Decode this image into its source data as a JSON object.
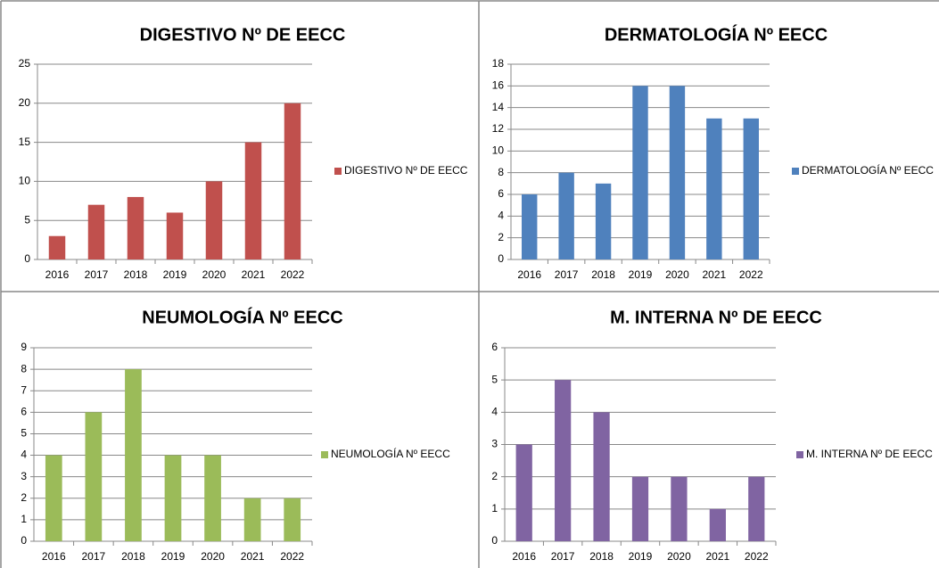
{
  "chart_data": [
    {
      "type": "bar",
      "title": "DIGESTIVO Nº DE EECC",
      "categories": [
        "2016",
        "2017",
        "2018",
        "2019",
        "2020",
        "2021",
        "2022"
      ],
      "series": [
        {
          "name": "DIGESTIVO Nº DE EECC",
          "color": "#c0504d",
          "values": [
            3,
            7,
            8,
            6,
            10,
            15,
            20
          ]
        }
      ],
      "ylim": [
        0,
        25
      ],
      "yticks": [
        0,
        5,
        10,
        15,
        20,
        25
      ],
      "grid": true,
      "legend": "right"
    },
    {
      "type": "bar",
      "title": "DERMATOLOGÍA Nº EECC",
      "categories": [
        "2016",
        "2017",
        "2018",
        "2019",
        "2020",
        "2021",
        "2022"
      ],
      "series": [
        {
          "name": "DERMATOLOGÍA Nº EECC",
          "color": "#4f81bd",
          "values": [
            6,
            8,
            7,
            16,
            16,
            13,
            13
          ]
        }
      ],
      "ylim": [
        0,
        18
      ],
      "yticks": [
        0,
        2,
        4,
        6,
        8,
        10,
        12,
        14,
        16,
        18
      ],
      "grid": true,
      "legend": "right"
    },
    {
      "type": "bar",
      "title": "NEUMOLOGÍA Nº EECC",
      "categories": [
        "2016",
        "2017",
        "2018",
        "2019",
        "2020",
        "2021",
        "2022"
      ],
      "series": [
        {
          "name": "NEUMOLOGÍA Nº EECC",
          "color": "#9bbb59",
          "values": [
            4,
            6,
            8,
            4,
            4,
            2,
            2
          ]
        }
      ],
      "ylim": [
        0,
        9
      ],
      "yticks": [
        0,
        1,
        2,
        3,
        4,
        5,
        6,
        7,
        8,
        9
      ],
      "grid": true,
      "legend": "right"
    },
    {
      "type": "bar",
      "title": "M. INTERNA Nº DE EECC",
      "categories": [
        "2016",
        "2017",
        "2018",
        "2019",
        "2020",
        "2021",
        "2022"
      ],
      "series": [
        {
          "name": "M. INTERNA Nº DE EECC",
          "color": "#8064a2",
          "values": [
            3,
            5,
            4,
            2,
            2,
            1,
            2
          ]
        }
      ],
      "ylim": [
        0,
        6
      ],
      "yticks": [
        0,
        1,
        2,
        3,
        4,
        5,
        6
      ],
      "grid": true,
      "legend": "right"
    }
  ]
}
